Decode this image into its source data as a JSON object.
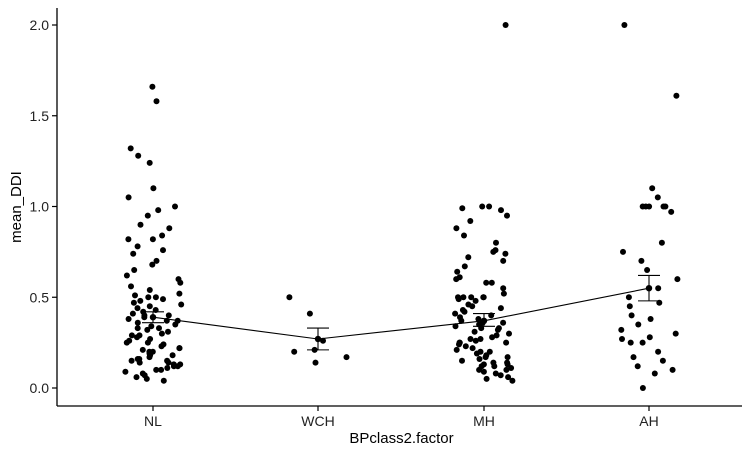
{
  "chart_data": {
    "type": "scatter",
    "title": "",
    "xlabel": "BPclass2.factor",
    "ylabel": "mean_DDI",
    "categories": [
      "NL",
      "WCH",
      "MH",
      "AH"
    ],
    "y_ticks": [
      "0.0",
      "0.5",
      "1.0",
      "1.5",
      "2.0"
    ],
    "ylim": [
      -0.05,
      2.05
    ],
    "grid": false,
    "legend": "none",
    "summary": {
      "name": "mean",
      "means": [
        0.39,
        0.27,
        0.37,
        0.55
      ],
      "ci_low": [
        0.36,
        0.21,
        0.34,
        0.48
      ],
      "ci_high": [
        0.42,
        0.33,
        0.41,
        0.62
      ]
    },
    "points": [
      {
        "category": "NL",
        "y": 1.66
      },
      {
        "category": "NL",
        "y": 1.58
      },
      {
        "category": "NL",
        "y": 1.32
      },
      {
        "category": "NL",
        "y": 1.28
      },
      {
        "category": "NL",
        "y": 1.24
      },
      {
        "category": "NL",
        "y": 1.1
      },
      {
        "category": "NL",
        "y": 1.05
      },
      {
        "category": "NL",
        "y": 1.0
      },
      {
        "category": "NL",
        "y": 0.98
      },
      {
        "category": "NL",
        "y": 0.95
      },
      {
        "category": "NL",
        "y": 0.9
      },
      {
        "category": "NL",
        "y": 0.88
      },
      {
        "category": "NL",
        "y": 0.84
      },
      {
        "category": "NL",
        "y": 0.82
      },
      {
        "category": "NL",
        "y": 0.82
      },
      {
        "category": "NL",
        "y": 0.78
      },
      {
        "category": "NL",
        "y": 0.76
      },
      {
        "category": "NL",
        "y": 0.74
      },
      {
        "category": "NL",
        "y": 0.7
      },
      {
        "category": "NL",
        "y": 0.68
      },
      {
        "category": "NL",
        "y": 0.65
      },
      {
        "category": "NL",
        "y": 0.62
      },
      {
        "category": "NL",
        "y": 0.6
      },
      {
        "category": "NL",
        "y": 0.58
      },
      {
        "category": "NL",
        "y": 0.56
      },
      {
        "category": "NL",
        "y": 0.54
      },
      {
        "category": "NL",
        "y": 0.52
      },
      {
        "category": "NL",
        "y": 0.51
      },
      {
        "category": "NL",
        "y": 0.5
      },
      {
        "category": "NL",
        "y": 0.5
      },
      {
        "category": "NL",
        "y": 0.49
      },
      {
        "category": "NL",
        "y": 0.48
      },
      {
        "category": "NL",
        "y": 0.47
      },
      {
        "category": "NL",
        "y": 0.46
      },
      {
        "category": "NL",
        "y": 0.45
      },
      {
        "category": "NL",
        "y": 0.44
      },
      {
        "category": "NL",
        "y": 0.43
      },
      {
        "category": "NL",
        "y": 0.42
      },
      {
        "category": "NL",
        "y": 0.41
      },
      {
        "category": "NL",
        "y": 0.4
      },
      {
        "category": "NL",
        "y": 0.4
      },
      {
        "category": "NL",
        "y": 0.39
      },
      {
        "category": "NL",
        "y": 0.38
      },
      {
        "category": "NL",
        "y": 0.37
      },
      {
        "category": "NL",
        "y": 0.36
      },
      {
        "category": "NL",
        "y": 0.35
      },
      {
        "category": "NL",
        "y": 0.34
      },
      {
        "category": "NL",
        "y": 0.33
      },
      {
        "category": "NL",
        "y": 0.33
      },
      {
        "category": "NL",
        "y": 0.32
      },
      {
        "category": "NL",
        "y": 0.31
      },
      {
        "category": "NL",
        "y": 0.3
      },
      {
        "category": "NL",
        "y": 0.29
      },
      {
        "category": "NL",
        "y": 0.28
      },
      {
        "category": "NL",
        "y": 0.27
      },
      {
        "category": "NL",
        "y": 0.26
      },
      {
        "category": "NL",
        "y": 0.25
      },
      {
        "category": "NL",
        "y": 0.25
      },
      {
        "category": "NL",
        "y": 0.24
      },
      {
        "category": "NL",
        "y": 0.23
      },
      {
        "category": "NL",
        "y": 0.22
      },
      {
        "category": "NL",
        "y": 0.21
      },
      {
        "category": "NL",
        "y": 0.2
      },
      {
        "category": "NL",
        "y": 0.2
      },
      {
        "category": "NL",
        "y": 0.19
      },
      {
        "category": "NL",
        "y": 0.18
      },
      {
        "category": "NL",
        "y": 0.18
      },
      {
        "category": "NL",
        "y": 0.17
      },
      {
        "category": "NL",
        "y": 0.16
      },
      {
        "category": "NL",
        "y": 0.16
      },
      {
        "category": "NL",
        "y": 0.15
      },
      {
        "category": "NL",
        "y": 0.15
      },
      {
        "category": "NL",
        "y": 0.14
      },
      {
        "category": "NL",
        "y": 0.14
      },
      {
        "category": "NL",
        "y": 0.13
      },
      {
        "category": "NL",
        "y": 0.13
      },
      {
        "category": "NL",
        "y": 0.12
      },
      {
        "category": "NL",
        "y": 0.12
      },
      {
        "category": "NL",
        "y": 0.11
      },
      {
        "category": "NL",
        "y": 0.1
      },
      {
        "category": "NL",
        "y": 0.1
      },
      {
        "category": "NL",
        "y": 0.09
      },
      {
        "category": "NL",
        "y": 0.08
      },
      {
        "category": "NL",
        "y": 0.07
      },
      {
        "category": "NL",
        "y": 0.06
      },
      {
        "category": "NL",
        "y": 0.05
      },
      {
        "category": "NL",
        "y": 0.04
      },
      {
        "category": "NL",
        "y": 0.37
      },
      {
        "category": "NL",
        "y": 0.29
      },
      {
        "category": "NL",
        "y": 0.22
      },
      {
        "category": "WCH",
        "y": 0.5
      },
      {
        "category": "WCH",
        "y": 0.41
      },
      {
        "category": "WCH",
        "y": 0.26
      },
      {
        "category": "WCH",
        "y": 0.21
      },
      {
        "category": "WCH",
        "y": 0.2
      },
      {
        "category": "WCH",
        "y": 0.17
      },
      {
        "category": "WCH",
        "y": 0.14
      },
      {
        "category": "MH",
        "y": 2.0
      },
      {
        "category": "MH",
        "y": 1.0
      },
      {
        "category": "MH",
        "y": 1.0
      },
      {
        "category": "MH",
        "y": 0.99
      },
      {
        "category": "MH",
        "y": 0.98
      },
      {
        "category": "MH",
        "y": 0.95
      },
      {
        "category": "MH",
        "y": 0.92
      },
      {
        "category": "MH",
        "y": 0.88
      },
      {
        "category": "MH",
        "y": 0.84
      },
      {
        "category": "MH",
        "y": 0.8
      },
      {
        "category": "MH",
        "y": 0.76
      },
      {
        "category": "MH",
        "y": 0.75
      },
      {
        "category": "MH",
        "y": 0.74
      },
      {
        "category": "MH",
        "y": 0.72
      },
      {
        "category": "MH",
        "y": 0.7
      },
      {
        "category": "MH",
        "y": 0.67
      },
      {
        "category": "MH",
        "y": 0.64
      },
      {
        "category": "MH",
        "y": 0.61
      },
      {
        "category": "MH",
        "y": 0.6
      },
      {
        "category": "MH",
        "y": 0.58
      },
      {
        "category": "MH",
        "y": 0.55
      },
      {
        "category": "MH",
        "y": 0.52
      },
      {
        "category": "MH",
        "y": 0.5
      },
      {
        "category": "MH",
        "y": 0.5
      },
      {
        "category": "MH",
        "y": 0.5
      },
      {
        "category": "MH",
        "y": 0.5
      },
      {
        "category": "MH",
        "y": 0.5
      },
      {
        "category": "MH",
        "y": 0.49
      },
      {
        "category": "MH",
        "y": 0.48
      },
      {
        "category": "MH",
        "y": 0.46
      },
      {
        "category": "MH",
        "y": 0.45
      },
      {
        "category": "MH",
        "y": 0.44
      },
      {
        "category": "MH",
        "y": 0.43
      },
      {
        "category": "MH",
        "y": 0.42
      },
      {
        "category": "MH",
        "y": 0.41
      },
      {
        "category": "MH",
        "y": 0.4
      },
      {
        "category": "MH",
        "y": 0.39
      },
      {
        "category": "MH",
        "y": 0.38
      },
      {
        "category": "MH",
        "y": 0.37
      },
      {
        "category": "MH",
        "y": 0.36
      },
      {
        "category": "MH",
        "y": 0.35
      },
      {
        "category": "MH",
        "y": 0.34
      },
      {
        "category": "MH",
        "y": 0.33
      },
      {
        "category": "MH",
        "y": 0.33
      },
      {
        "category": "MH",
        "y": 0.32
      },
      {
        "category": "MH",
        "y": 0.31
      },
      {
        "category": "MH",
        "y": 0.3
      },
      {
        "category": "MH",
        "y": 0.29
      },
      {
        "category": "MH",
        "y": 0.28
      },
      {
        "category": "MH",
        "y": 0.27
      },
      {
        "category": "MH",
        "y": 0.26
      },
      {
        "category": "MH",
        "y": 0.25
      },
      {
        "category": "MH",
        "y": 0.25
      },
      {
        "category": "MH",
        "y": 0.25
      },
      {
        "category": "MH",
        "y": 0.24
      },
      {
        "category": "MH",
        "y": 0.23
      },
      {
        "category": "MH",
        "y": 0.22
      },
      {
        "category": "MH",
        "y": 0.21
      },
      {
        "category": "MH",
        "y": 0.2
      },
      {
        "category": "MH",
        "y": 0.2
      },
      {
        "category": "MH",
        "y": 0.19
      },
      {
        "category": "MH",
        "y": 0.18
      },
      {
        "category": "MH",
        "y": 0.17
      },
      {
        "category": "MH",
        "y": 0.17
      },
      {
        "category": "MH",
        "y": 0.16
      },
      {
        "category": "MH",
        "y": 0.15
      },
      {
        "category": "MH",
        "y": 0.14
      },
      {
        "category": "MH",
        "y": 0.14
      },
      {
        "category": "MH",
        "y": 0.13
      },
      {
        "category": "MH",
        "y": 0.13
      },
      {
        "category": "MH",
        "y": 0.12
      },
      {
        "category": "MH",
        "y": 0.12
      },
      {
        "category": "MH",
        "y": 0.11
      },
      {
        "category": "MH",
        "y": 0.1
      },
      {
        "category": "MH",
        "y": 0.1
      },
      {
        "category": "MH",
        "y": 0.09
      },
      {
        "category": "MH",
        "y": 0.08
      },
      {
        "category": "MH",
        "y": 0.07
      },
      {
        "category": "MH",
        "y": 0.06
      },
      {
        "category": "MH",
        "y": 0.05
      },
      {
        "category": "MH",
        "y": 0.04
      },
      {
        "category": "MH",
        "y": 0.58
      },
      {
        "category": "MH",
        "y": 0.36
      },
      {
        "category": "MH",
        "y": 0.27
      },
      {
        "category": "AH",
        "y": 2.0
      },
      {
        "category": "AH",
        "y": 1.61
      },
      {
        "category": "AH",
        "y": 1.1
      },
      {
        "category": "AH",
        "y": 1.05
      },
      {
        "category": "AH",
        "y": 1.0
      },
      {
        "category": "AH",
        "y": 1.0
      },
      {
        "category": "AH",
        "y": 1.0
      },
      {
        "category": "AH",
        "y": 1.0
      },
      {
        "category": "AH",
        "y": 1.0
      },
      {
        "category": "AH",
        "y": 0.97
      },
      {
        "category": "AH",
        "y": 0.8
      },
      {
        "category": "AH",
        "y": 0.75
      },
      {
        "category": "AH",
        "y": 0.7
      },
      {
        "category": "AH",
        "y": 0.65
      },
      {
        "category": "AH",
        "y": 0.6
      },
      {
        "category": "AH",
        "y": 0.55
      },
      {
        "category": "AH",
        "y": 0.5
      },
      {
        "category": "AH",
        "y": 0.47
      },
      {
        "category": "AH",
        "y": 0.45
      },
      {
        "category": "AH",
        "y": 0.4
      },
      {
        "category": "AH",
        "y": 0.38
      },
      {
        "category": "AH",
        "y": 0.35
      },
      {
        "category": "AH",
        "y": 0.32
      },
      {
        "category": "AH",
        "y": 0.3
      },
      {
        "category": "AH",
        "y": 0.28
      },
      {
        "category": "AH",
        "y": 0.27
      },
      {
        "category": "AH",
        "y": 0.25
      },
      {
        "category": "AH",
        "y": 0.25
      },
      {
        "category": "AH",
        "y": 0.2
      },
      {
        "category": "AH",
        "y": 0.17
      },
      {
        "category": "AH",
        "y": 0.15
      },
      {
        "category": "AH",
        "y": 0.12
      },
      {
        "category": "AH",
        "y": 0.1
      },
      {
        "category": "AH",
        "y": 0.08
      },
      {
        "category": "AH",
        "y": 0.0
      }
    ]
  }
}
